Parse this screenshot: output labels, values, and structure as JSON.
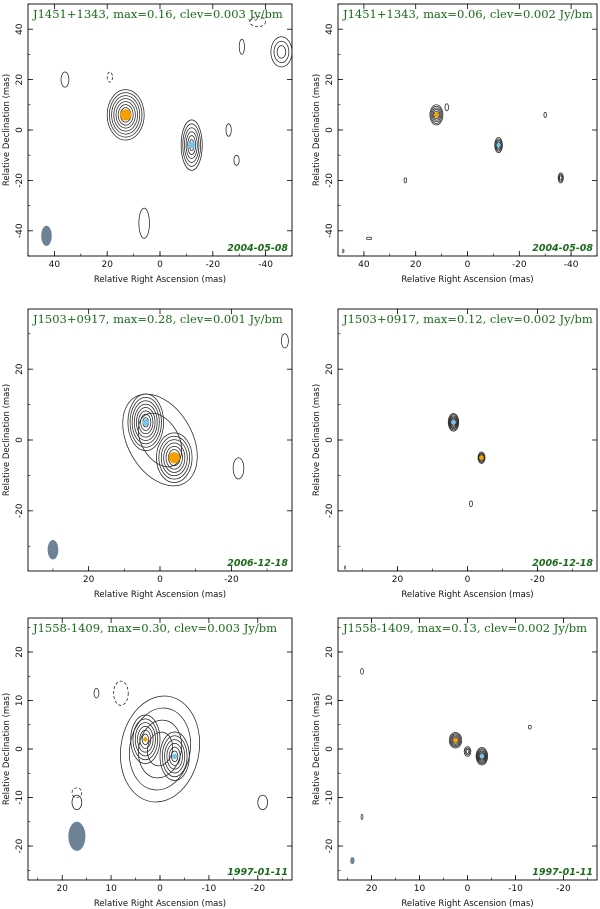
{
  "colors": {
    "title": "#1a6b1a",
    "beam": "#6e8296",
    "component_orange": "#f5a000",
    "component_blue": "#74c6ec",
    "contour": "#222222"
  },
  "chart_data": [
    {
      "type": "contour",
      "title": "J1451+1343, max=0.16, clev=0.003 Jy/bm",
      "date": "2004-05-08",
      "xlabel": "Relative Right Ascension (mas)",
      "ylabel": "Relative Declination (mas)",
      "xlim": [
        50,
        -50
      ],
      "ylim": [
        -50,
        50
      ],
      "xticks": [
        40,
        20,
        0,
        -20,
        -40
      ],
      "yticks": [
        -40,
        -20,
        0,
        20,
        40
      ],
      "beam": {
        "x": 43,
        "y": -42,
        "major": 8,
        "minor": 4,
        "pa": 0
      },
      "components": [
        {
          "x": 13,
          "y": 6,
          "color": "orange",
          "size": 3.5
        },
        {
          "x": -12,
          "y": -6,
          "color": "blue",
          "size": 1.8
        }
      ],
      "sources": [
        {
          "x": 13,
          "y": 6,
          "a": 7,
          "b": 10,
          "pa": 0,
          "levels": 8
        },
        {
          "x": -12,
          "y": -6,
          "a": 4,
          "b": 10,
          "pa": 0,
          "levels": 6
        },
        {
          "x": -46,
          "y": 31,
          "a": 4,
          "b": 6,
          "pa": 0,
          "levels": 3
        },
        {
          "x": 6,
          "y": -37,
          "a": 2,
          "b": 6,
          "pa": 0,
          "levels": 1
        },
        {
          "x": 36,
          "y": 20,
          "a": 1.5,
          "b": 3,
          "pa": 0,
          "levels": 1
        },
        {
          "x": -31,
          "y": 33,
          "a": 1,
          "b": 3,
          "pa": 0,
          "levels": 1
        },
        {
          "x": -26,
          "y": 0,
          "a": 1,
          "b": 2.5,
          "pa": 0,
          "levels": 1
        },
        {
          "x": -29,
          "y": -12,
          "a": 1,
          "b": 2,
          "pa": 0,
          "levels": 1
        }
      ],
      "negatives": [
        {
          "x": -37,
          "y": 43,
          "a": 3,
          "b": 2
        },
        {
          "x": 19,
          "y": 21,
          "a": 1,
          "b": 2
        }
      ]
    },
    {
      "type": "contour",
      "title": "J1451+1343, max=0.06, clev=0.002 Jy/bm",
      "date": "2004-05-08",
      "xlabel": "Relative Right Ascension (mas)",
      "ylabel": "Relative Declination (mas)",
      "xlim": [
        50,
        -50
      ],
      "ylim": [
        -50,
        50
      ],
      "xticks": [
        40,
        20,
        0,
        -20,
        -40
      ],
      "yticks": [
        -40,
        -20,
        0,
        20,
        40
      ],
      "beam": {
        "x": 48,
        "y": -48,
        "major": 1.8,
        "minor": 1,
        "pa": 0
      },
      "components": [
        {
          "x": 12,
          "y": 6,
          "color": "orange",
          "size": 1.3
        },
        {
          "x": -12,
          "y": -6,
          "color": "blue",
          "size": 0.7
        }
      ],
      "sources": [
        {
          "x": 12,
          "y": 6,
          "a": 2.5,
          "b": 4,
          "pa": 0,
          "levels": 6
        },
        {
          "x": -12,
          "y": -6,
          "a": 1.5,
          "b": 3,
          "pa": 0,
          "levels": 5
        },
        {
          "x": -36,
          "y": -19,
          "a": 1,
          "b": 2,
          "pa": 0,
          "levels": 3
        },
        {
          "x": 8,
          "y": 9,
          "a": 0.7,
          "b": 1.4,
          "pa": 0,
          "levels": 1
        },
        {
          "x": 24,
          "y": -20,
          "a": 0.5,
          "b": 1,
          "pa": 0,
          "levels": 1
        },
        {
          "x": -30,
          "y": 6,
          "a": 0.5,
          "b": 1,
          "pa": 0,
          "levels": 1
        },
        {
          "x": 38,
          "y": -43,
          "a": 1,
          "b": 0.5,
          "pa": 0,
          "levels": 1
        }
      ],
      "negatives": []
    },
    {
      "type": "contour",
      "title": "J1503+0917, max=0.28, clev=0.001 Jy/bm",
      "date": "2006-12-18",
      "xlabel": "Relative Right Ascension (mas)",
      "ylabel": "Relative Declination (mas)",
      "xlim": [
        37,
        -37
      ],
      "ylim": [
        -37,
        37
      ],
      "xticks": [
        20,
        0,
        -20
      ],
      "yticks": [
        -20,
        0,
        20
      ],
      "beam": {
        "x": 30,
        "y": -31,
        "major": 5.5,
        "minor": 3,
        "pa": 0
      },
      "components": [
        {
          "x": 4,
          "y": 5,
          "color": "blue",
          "size": 1.3
        },
        {
          "x": -4,
          "y": -5,
          "color": "orange",
          "size": 2.6
        }
      ],
      "sources": [
        {
          "x": 4,
          "y": 5,
          "a": 5,
          "b": 8,
          "pa": 0,
          "levels": 8
        },
        {
          "x": -4,
          "y": -5,
          "a": 5,
          "b": 7,
          "pa": 0,
          "levels": 7
        },
        {
          "x": 0,
          "y": 0,
          "a": 9,
          "b": 14,
          "pa": -30,
          "levels": 2
        },
        {
          "x": -22,
          "y": -8,
          "a": 1.5,
          "b": 3,
          "pa": 0,
          "levels": 1
        },
        {
          "x": -35,
          "y": 28,
          "a": 1,
          "b": 2,
          "pa": 0,
          "levels": 1
        }
      ],
      "negatives": []
    },
    {
      "type": "contour",
      "title": "J1503+0917, max=0.12, clev=0.002 Jy/bm",
      "date": "2006-12-18",
      "xlabel": "Relative Right Ascension (mas)",
      "ylabel": "Relative Declination (mas)",
      "xlim": [
        37,
        -37
      ],
      "ylim": [
        -37,
        37
      ],
      "xticks": [
        20,
        0,
        -20
      ],
      "yticks": [
        -20,
        0,
        20
      ],
      "beam": {
        "x": 35,
        "y": -36,
        "major": 1.2,
        "minor": 0.6,
        "pa": 0
      },
      "components": [
        {
          "x": 4,
          "y": 5,
          "color": "blue",
          "size": 0.8
        },
        {
          "x": -4,
          "y": -5,
          "color": "orange",
          "size": 0.8
        }
      ],
      "sources": [
        {
          "x": 4,
          "y": 5,
          "a": 1.5,
          "b": 2.5,
          "pa": 0,
          "levels": 7
        },
        {
          "x": -4,
          "y": -5,
          "a": 1,
          "b": 1.6,
          "pa": 0,
          "levels": 5
        },
        {
          "x": -1,
          "y": -18,
          "a": 0.4,
          "b": 0.8,
          "pa": 0,
          "levels": 1
        }
      ],
      "negatives": []
    },
    {
      "type": "contour",
      "title": "J1558-1409, max=0.30, clev=0.003 Jy/bm",
      "date": "1997-01-11",
      "xlabel": "Relative Right Ascension (mas)",
      "ylabel": "Relative Declination (mas)",
      "xlim": [
        27,
        -27
      ],
      "ylim": [
        -27,
        27
      ],
      "xticks": [
        20,
        10,
        0,
        -10,
        -20
      ],
      "yticks": [
        -20,
        -10,
        0,
        10,
        20
      ],
      "beam": {
        "x": 17,
        "y": -18,
        "major": 6,
        "minor": 3.5,
        "pa": 0
      },
      "components": [
        {
          "x": 3,
          "y": 2,
          "color": "orange",
          "size": 0.5
        },
        {
          "x": -3,
          "y": -1.5,
          "color": "blue",
          "size": 0.7
        }
      ],
      "sources": [
        {
          "x": 3,
          "y": 2,
          "a": 3,
          "b": 5,
          "pa": 0,
          "levels": 6
        },
        {
          "x": -3,
          "y": -1.5,
          "a": 3,
          "b": 5,
          "pa": 0,
          "levels": 6
        },
        {
          "x": 0,
          "y": 0,
          "a": 8,
          "b": 11,
          "pa": 10,
          "levels": 4
        },
        {
          "x": -21,
          "y": -11,
          "a": 1,
          "b": 1.5,
          "pa": 0,
          "levels": 1
        },
        {
          "x": 13,
          "y": 11.5,
          "a": 0.5,
          "b": 1,
          "pa": 0,
          "levels": 1
        },
        {
          "x": 17,
          "y": -11,
          "a": 1,
          "b": 1.5,
          "pa": 0,
          "levels": 1
        }
      ],
      "negatives": [
        {
          "x": 8,
          "y": 11.5,
          "a": 1.5,
          "b": 2.5
        },
        {
          "x": 17,
          "y": -9,
          "a": 1,
          "b": 1
        }
      ]
    },
    {
      "type": "contour",
      "title": "J1558-1409, max=0.13, clev=0.002 Jy/bm",
      "date": "1997-01-11",
      "xlabel": "Relative Right Ascension (mas)",
      "ylabel": "Relative Declination (mas)",
      "xlim": [
        27,
        -27
      ],
      "ylim": [
        -27,
        27
      ],
      "xticks": [
        20,
        10,
        0,
        -10,
        -20
      ],
      "yticks": [
        -20,
        -10,
        0,
        10,
        20
      ],
      "beam": {
        "x": 24,
        "y": -23,
        "major": 1.5,
        "minor": 0.9,
        "pa": 0
      },
      "components": [
        {
          "x": 2.5,
          "y": 1.8,
          "color": "orange",
          "size": 0.6
        },
        {
          "x": -3,
          "y": -1.5,
          "color": "blue",
          "size": 0.5
        }
      ],
      "sources": [
        {
          "x": 2.5,
          "y": 1.8,
          "a": 1.3,
          "b": 1.6,
          "pa": 0,
          "levels": 6
        },
        {
          "x": -3,
          "y": -1.5,
          "a": 1.2,
          "b": 1.8,
          "pa": 0,
          "levels": 7
        },
        {
          "x": 0,
          "y": -0.5,
          "a": 0.7,
          "b": 1,
          "pa": 0,
          "levels": 3
        },
        {
          "x": 22,
          "y": 16,
          "a": 0.3,
          "b": 0.6,
          "pa": 0,
          "levels": 1
        },
        {
          "x": -13,
          "y": 4.5,
          "a": 0.3,
          "b": 0.4,
          "pa": 0,
          "levels": 1
        },
        {
          "x": 22,
          "y": -14,
          "a": 0.2,
          "b": 0.5,
          "pa": 0,
          "levels": 1
        }
      ],
      "negatives": []
    }
  ]
}
